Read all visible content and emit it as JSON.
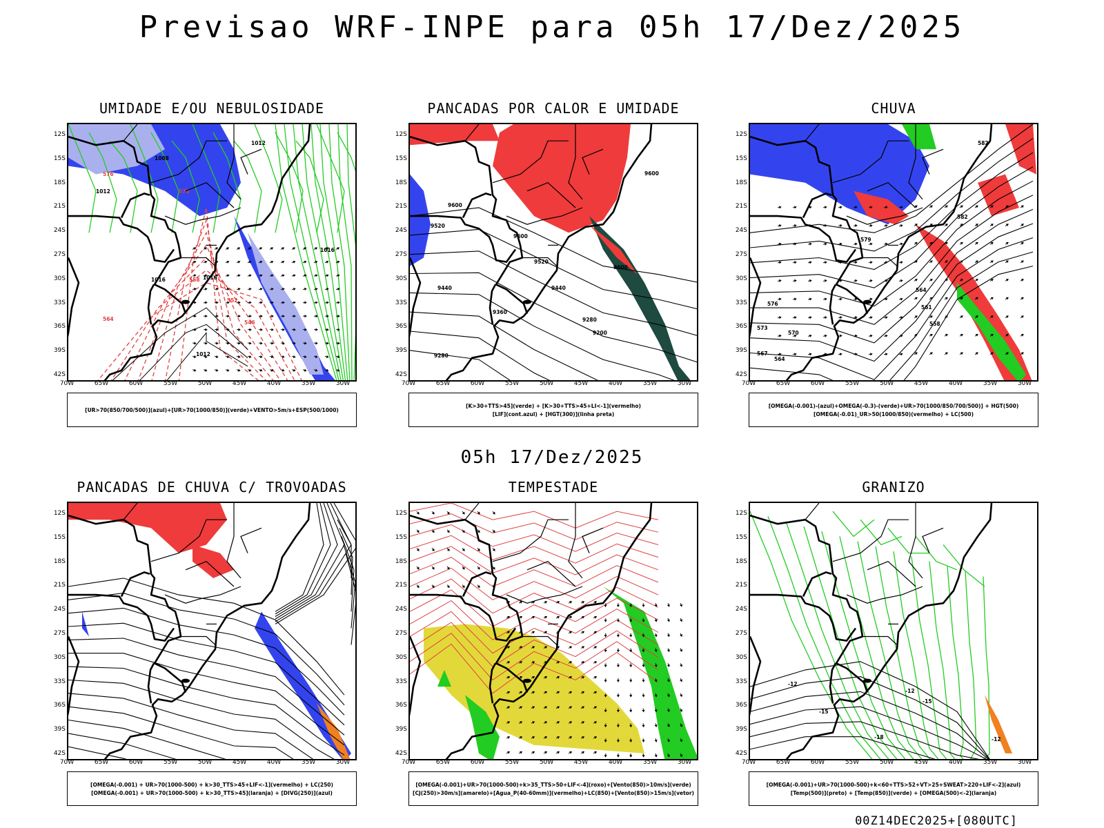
{
  "title": "Previsao WRF-INPE  para 05h 17/Dez/2025",
  "mid_time": "05h 17/Dez/2025",
  "run_label": "00Z14DEC2025+[080UTC]",
  "lat_labels": [
    "12S",
    "15S",
    "18S",
    "21S",
    "24S",
    "27S",
    "30S",
    "33S",
    "36S",
    "39S",
    "42S"
  ],
  "lon_labels": [
    "70W",
    "65W",
    "60W",
    "55W",
    "50W",
    "45W",
    "40W",
    "35W",
    "30W"
  ],
  "colors": {
    "red": "#ef3b3b",
    "green": "#22cc22",
    "blue": "#3344ee",
    "lightblue": "#aab0ee",
    "yellow": "#e3d83a",
    "dkgreen": "#1e4a40",
    "orange": "#f08020"
  },
  "panels": [
    {
      "title": "UMIDADE E/OU NEBULOSIDADE",
      "legend": [
        "[UR>70(850/700/500)](azul)+[UR>70(1000/850)](verde)+VENTO>5m/s+ESP(500/1000)"
      ],
      "contour_labels": [
        "1012",
        "1008",
        "1016",
        "1020",
        "1004",
        "576",
        "570",
        "564",
        "558",
        "552",
        "546"
      ]
    },
    {
      "title": "PANCADAS POR CALOR E UMIDADE",
      "legend": [
        "[K>30+TTS>45](verde) + [K>30+TTS>45+LI<-1](vermelho)",
        "[LIF](cont.azul) + [HGT(300)](linha preta)"
      ],
      "contour_labels": [
        "9600",
        "9520",
        "9440",
        "9360",
        "9280",
        "9200"
      ]
    },
    {
      "title": "CHUVA",
      "legend": [
        "[OMEGA(-0.001)-(azul)+OMEGA(-0.3)-(verde)+UR>70(1000/850/700/500)] + HGT(500)",
        "[OMEGA(-0.01)_UR>50(1000/850)(vermelho) + LC(500)"
      ],
      "contour_labels": [
        "582",
        "579",
        "576",
        "573",
        "570",
        "567",
        "564",
        "561",
        "558"
      ]
    },
    {
      "title": "PANCADAS DE CHUVA C/ TROVOADAS",
      "legend": [
        "[OMEGA(-0.001) + UR>70(1000-500) + k>30_TTS>45+LIF<-1](vermelho) + LC(250)",
        "[OMEGA(-0.001) + UR>70(1000-500) + k>30_TTS>45](laranja) + [DIVG(250)](azul)"
      ],
      "contour_labels": []
    },
    {
      "title": "TEMPESTADE",
      "legend": [
        "[OMEGA(-0.001)+UR>70(1000-500)+k>35_TTS>50+LIF<-4](roxo)+[Vento(850)>10m/s](verde)",
        "[CJ(250)>30m/s](amarelo)+[Agua_P(40-60mm)](vermelho)+LC(850)+[Vento(850)>15m/s](vetor)"
      ],
      "contour_labels": []
    },
    {
      "title": "GRANIZO",
      "legend": [
        "[OMEGA(-0.001)+UR>70(1000-500)+k<60+TTS>52+VT>25+SWEAT>220+LIF<-2](azul)",
        "[Temp(500)](preto) + [Temp(850)](verde) + [OMEGA(500)<-2](laranja)"
      ],
      "contour_labels": [
        "-12",
        "-15",
        "-18"
      ]
    }
  ]
}
